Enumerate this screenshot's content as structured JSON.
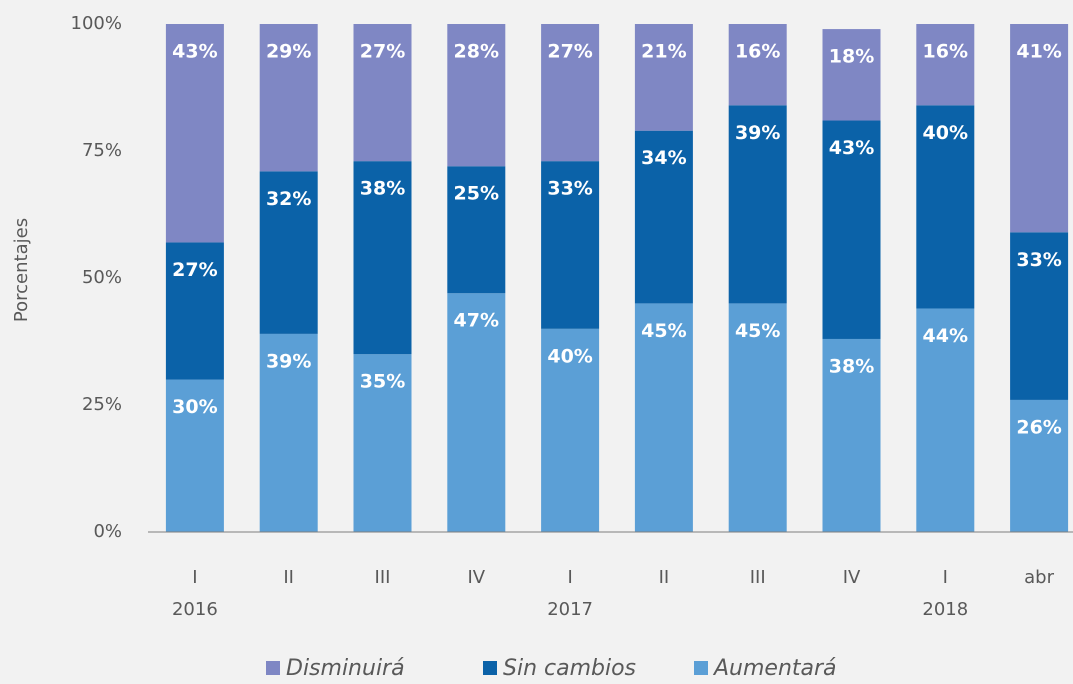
{
  "chart_data": {
    "type": "stacked_bar",
    "y_label": "Porcentajes",
    "categories": [
      "I",
      "II",
      "III",
      "IV",
      "I",
      "II",
      "III",
      "IV",
      "I",
      "abr"
    ],
    "years": [
      "2016",
      null,
      null,
      null,
      "2017",
      null,
      null,
      null,
      "2018",
      null
    ],
    "series": [
      {
        "name": "Disminuirá",
        "color": "#7f87c4",
        "values": [
          43,
          29,
          27,
          28,
          27,
          21,
          16,
          18,
          16,
          41
        ],
        "value_labels": [
          "43%",
          "29%",
          "27%",
          "28%",
          "27%",
          "21%",
          "16%",
          "18%",
          "16%",
          "41%"
        ]
      },
      {
        "name": "Sin cambios",
        "color": "#0b62a8",
        "values": [
          27,
          32,
          38,
          25,
          33,
          34,
          39,
          43,
          40,
          33
        ],
        "value_labels": [
          "27%",
          "32%",
          "38%",
          "25%",
          "33%",
          "34%",
          "39%",
          "43%",
          "40%",
          "33%"
        ]
      },
      {
        "name": "Aumentará",
        "color": "#5b9fd6",
        "values": [
          30,
          39,
          35,
          47,
          40,
          45,
          45,
          38,
          44,
          26
        ],
        "value_labels": [
          "30%",
          "39%",
          "35%",
          "47%",
          "40%",
          "45%",
          "45%",
          "38%",
          "44%",
          "26%"
        ]
      }
    ],
    "ylim": [
      0,
      100
    ],
    "yticks": [
      {
        "value": 0,
        "label": "0%"
      },
      {
        "value": 25,
        "label": "25%"
      },
      {
        "value": 50,
        "label": "50%"
      },
      {
        "value": 75,
        "label": "75%"
      },
      {
        "value": 100,
        "label": "100%"
      }
    ],
    "grid": false,
    "legend": "bottom"
  }
}
